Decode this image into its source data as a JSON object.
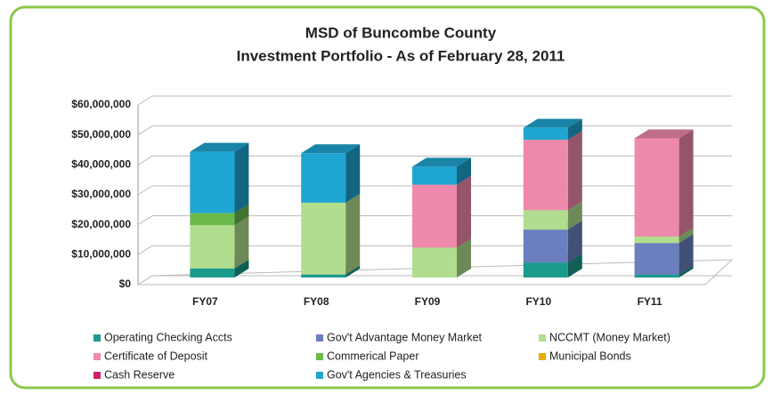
{
  "chart_data": {
    "type": "bar3d-stacked",
    "title": [
      "MSD of Buncombe County",
      "Investment Portfolio - As of February 28, 2011"
    ],
    "categories": [
      "FY07",
      "FY08",
      "FY09",
      "FY10",
      "FY11"
    ],
    "series": [
      {
        "name": "Operating Checking Accts",
        "color": "#1c9a8c",
        "values": [
          3000000,
          1000000,
          0,
          5000000,
          1000000
        ]
      },
      {
        "name": "Gov't Advantage Money Market",
        "color": "#6b7fbf",
        "values": [
          0,
          0,
          0,
          11000000,
          10500000
        ]
      },
      {
        "name": "NCCMT (Money Market)",
        "color": "#b2dd8e",
        "values": [
          14500000,
          24000000,
          10000000,
          6500000,
          2200000
        ]
      },
      {
        "name": "Certificate of Deposit",
        "color": "#ee89ab",
        "values": [
          0,
          0,
          21000000,
          23500000,
          32800000
        ]
      },
      {
        "name": "Commerical Paper",
        "color": "#6cb94b",
        "values": [
          4000000,
          0,
          0,
          0,
          0
        ]
      },
      {
        "name": "Municipal Bonds",
        "color": "#e6ac00",
        "values": [
          0,
          0,
          0,
          0,
          0
        ]
      },
      {
        "name": "Cash  Reserve",
        "color": "#d0206c",
        "values": [
          0,
          0,
          0,
          0,
          0
        ]
      },
      {
        "name": "Gov't Agencies & Treasuries",
        "color": "#1fa5d1",
        "values": [
          20500000,
          16500000,
          6000000,
          4000000,
          0
        ]
      }
    ],
    "ylim": [
      0,
      60000000
    ],
    "yticks": [
      {
        "value": 0,
        "label": "$0"
      },
      {
        "value": 10000000,
        "label": "$10,000,000"
      },
      {
        "value": 20000000,
        "label": "$20,000,000"
      },
      {
        "value": 30000000,
        "label": "$30,000,000"
      },
      {
        "value": 40000000,
        "label": "$40,000,000"
      },
      {
        "value": 50000000,
        "label": "$50,000,000"
      },
      {
        "value": 60000000,
        "label": "$60,000,000"
      }
    ],
    "grid": true
  }
}
